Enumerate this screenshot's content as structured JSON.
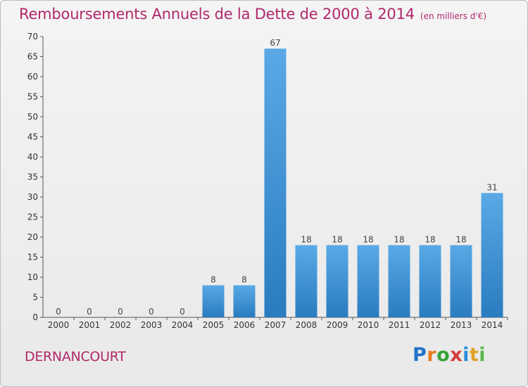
{
  "title": "Remboursements Annuels de la Dette de 2000 à 2014",
  "unit": "(en milliers d'€)",
  "town": "DERNANCOURT",
  "brand": {
    "letters": [
      "P",
      "r",
      "o",
      "x",
      "i",
      "t",
      "i"
    ],
    "colors": [
      "#1f73c8",
      "#e57b1f",
      "#3aa33a",
      "#d43b3b",
      "#2a8fd6",
      "#e0a12a",
      "#59b84a"
    ]
  },
  "colors": {
    "bar_top": "#5aa9e6",
    "bar_bottom": "#2a7cc0",
    "title": "#b0286a"
  },
  "chart_data": {
    "type": "bar",
    "categories": [
      "2000",
      "2001",
      "2002",
      "2003",
      "2004",
      "2005",
      "2006",
      "2007",
      "2008",
      "2009",
      "2010",
      "2011",
      "2012",
      "2013",
      "2014"
    ],
    "values": [
      0,
      0,
      0,
      0,
      0,
      8,
      8,
      67,
      18,
      18,
      18,
      18,
      18,
      18,
      31
    ],
    "ylim": [
      0,
      70
    ],
    "yticks": [
      0,
      5,
      10,
      15,
      20,
      25,
      30,
      35,
      40,
      45,
      50,
      55,
      60,
      65,
      70
    ],
    "grid": false
  }
}
